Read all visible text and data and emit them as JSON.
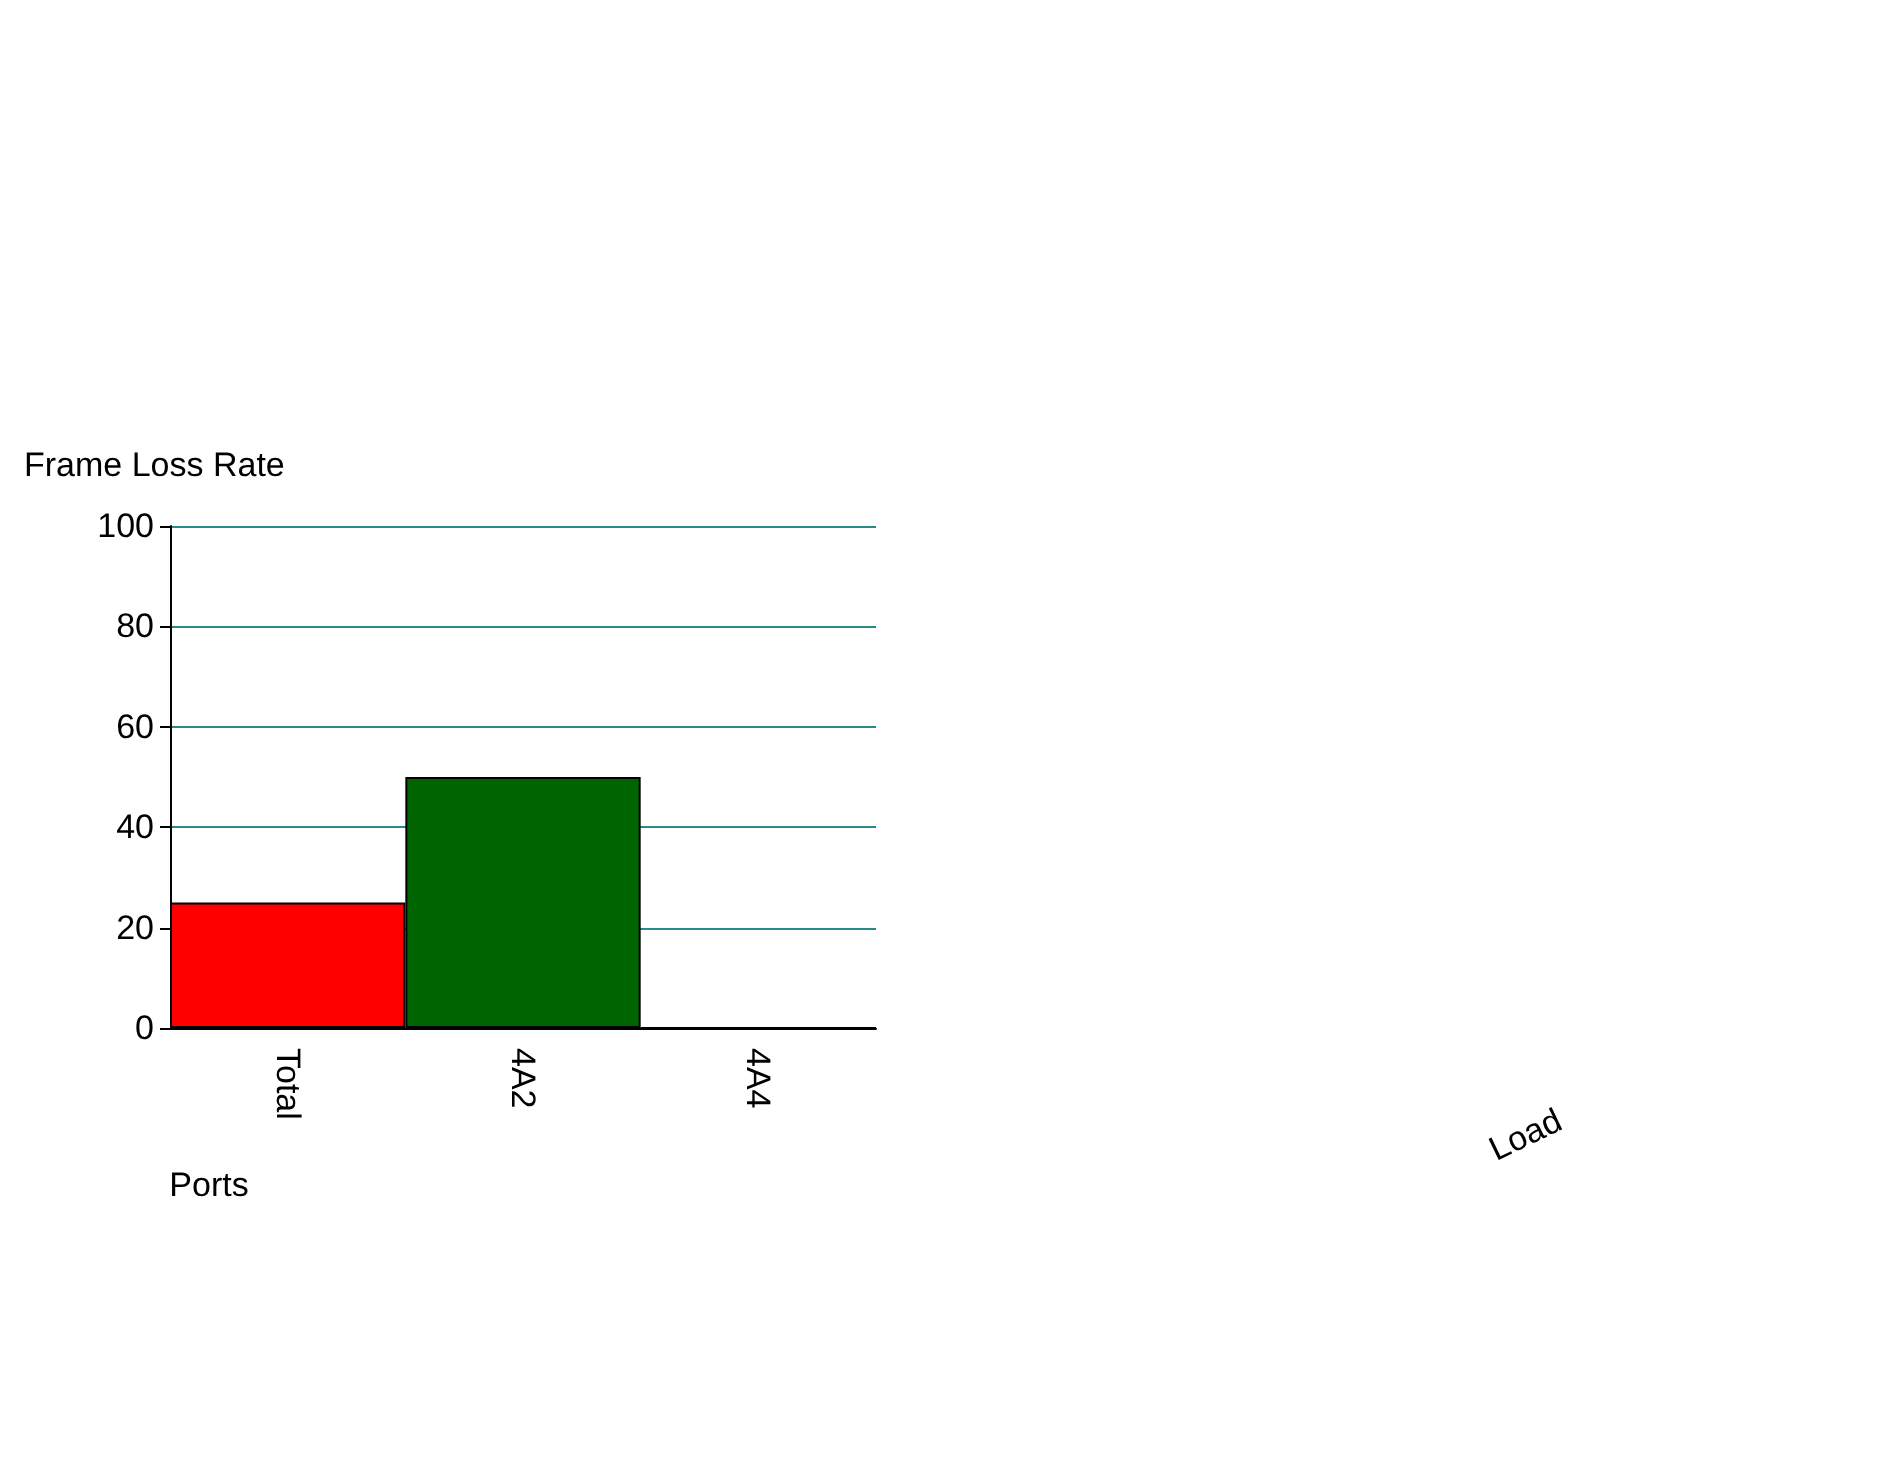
{
  "chart_data": {
    "type": "bar",
    "ylabel": "Frame Loss Rate",
    "xlabel": "Ports",
    "categories": [
      "Total",
      "4A2",
      "4A4"
    ],
    "values": [
      25,
      50,
      0
    ],
    "colors": [
      "#ff0000",
      "#006400",
      "#0000ff"
    ],
    "ylim": [
      0,
      100
    ],
    "yticks": [
      0,
      20,
      40,
      60,
      80,
      100
    ],
    "grid": "y",
    "annotations": [
      "Load"
    ]
  }
}
